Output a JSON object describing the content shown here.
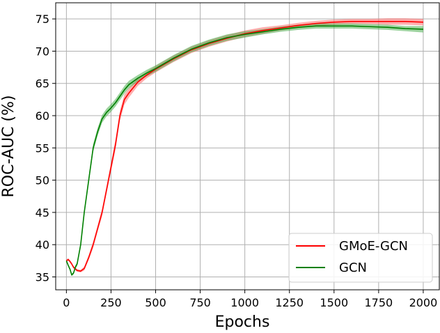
{
  "chart_data": {
    "type": "line",
    "xlabel": "Epochs",
    "ylabel": "ROC-AUC (%)",
    "xlim": [
      -60,
      2090
    ],
    "ylim": [
      33.0,
      77.5
    ],
    "xticks": [
      0,
      250,
      500,
      750,
      1000,
      1250,
      1500,
      1750,
      2000
    ],
    "xtick_labels": [
      "0",
      "250",
      "500",
      "750",
      "1000",
      "1250",
      "1500",
      "1750",
      "2000"
    ],
    "yticks": [
      35,
      40,
      45,
      50,
      55,
      60,
      65,
      70,
      75
    ],
    "ytick_labels": [
      "35",
      "40",
      "45",
      "50",
      "55",
      "60",
      "65",
      "70",
      "75"
    ],
    "grid": true,
    "legend_position": "lower-right",
    "series": [
      {
        "name": "GMoE-GCN",
        "color": "#ff0000",
        "band_color": "#ff6b6b",
        "x": [
          0,
          10,
          20,
          30,
          40,
          60,
          80,
          100,
          125,
          150,
          175,
          200,
          225,
          250,
          275,
          300,
          325,
          350,
          400,
          450,
          500,
          600,
          700,
          800,
          900,
          1000,
          1100,
          1200,
          1300,
          1400,
          1500,
          1600,
          1700,
          1800,
          1900,
          2000
        ],
        "y": [
          37.5,
          37.7,
          37.4,
          37.0,
          36.5,
          36.0,
          35.9,
          36.3,
          38.0,
          40.0,
          42.5,
          45.0,
          48.5,
          52.0,
          55.5,
          60.0,
          62.5,
          63.5,
          65.2,
          66.3,
          67.2,
          68.8,
          70.2,
          71.2,
          72.0,
          72.7,
          73.2,
          73.6,
          74.0,
          74.3,
          74.5,
          74.6,
          74.6,
          74.6,
          74.6,
          74.5
        ],
        "band": [
          0.2,
          0.2,
          0.2,
          0.2,
          0.2,
          0.2,
          0.2,
          0.3,
          0.4,
          0.5,
          0.5,
          0.6,
          0.6,
          0.7,
          0.8,
          0.8,
          0.8,
          0.7,
          0.6,
          0.5,
          0.5,
          0.5,
          0.5,
          0.5,
          0.5,
          0.5,
          0.5,
          0.4,
          0.4,
          0.4,
          0.4,
          0.4,
          0.4,
          0.5,
          0.5,
          0.5
        ]
      },
      {
        "name": "GCN",
        "color": "#008000",
        "band_color": "#4caf50",
        "x": [
          0,
          10,
          20,
          30,
          40,
          50,
          60,
          80,
          100,
          125,
          150,
          175,
          200,
          225,
          250,
          275,
          300,
          325,
          350,
          400,
          450,
          500,
          600,
          700,
          800,
          900,
          1000,
          1100,
          1200,
          1300,
          1400,
          1500,
          1600,
          1700,
          1800,
          1900,
          2000
        ],
        "y": [
          37.5,
          36.8,
          36.2,
          35.3,
          35.6,
          36.5,
          37.0,
          40.0,
          45.0,
          50.0,
          55.0,
          57.5,
          59.5,
          60.5,
          61.2,
          62.0,
          63.0,
          64.0,
          64.8,
          65.8,
          66.6,
          67.3,
          68.9,
          70.3,
          71.3,
          72.1,
          72.6,
          73.0,
          73.4,
          73.7,
          73.9,
          73.9,
          73.9,
          73.8,
          73.7,
          73.5,
          73.4
        ],
        "band": [
          0.2,
          0.2,
          0.2,
          0.2,
          0.2,
          0.3,
          0.3,
          0.3,
          0.4,
          0.5,
          0.6,
          0.6,
          0.6,
          0.6,
          0.6,
          0.6,
          0.6,
          0.6,
          0.6,
          0.5,
          0.5,
          0.5,
          0.5,
          0.5,
          0.5,
          0.5,
          0.5,
          0.4,
          0.4,
          0.4,
          0.4,
          0.4,
          0.4,
          0.4,
          0.4,
          0.4,
          0.5
        ]
      }
    ]
  }
}
